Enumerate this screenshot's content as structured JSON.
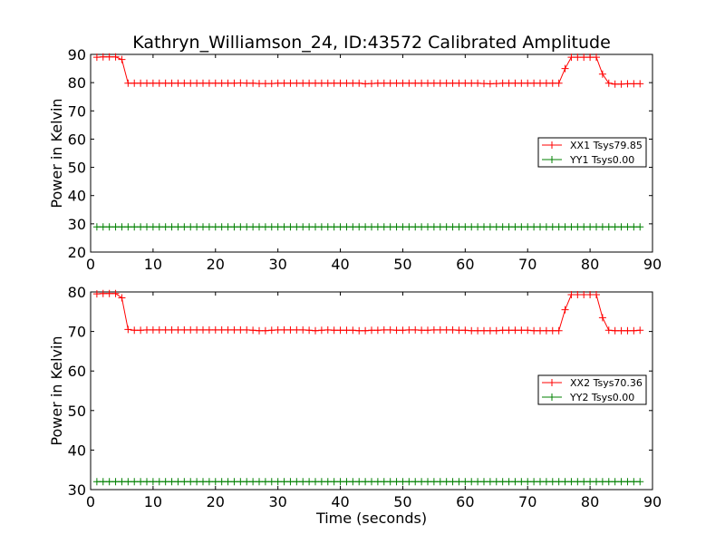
{
  "chart_data": [
    {
      "type": "line",
      "title": "Kathryn_Williamson_24, ID:43572 Calibrated Amplitude",
      "xlabel": "",
      "ylabel": "Power in Kelvin",
      "xlim": [
        0,
        90
      ],
      "ylim": [
        20,
        90
      ],
      "xticks": [
        0,
        10,
        20,
        30,
        40,
        50,
        60,
        70,
        80,
        90
      ],
      "yticks": [
        20,
        30,
        40,
        50,
        60,
        70,
        80,
        90
      ],
      "grid": false,
      "legend_position": "right",
      "x": [
        1,
        2,
        3,
        4,
        5,
        6,
        7,
        8,
        9,
        10,
        11,
        12,
        13,
        14,
        15,
        16,
        17,
        18,
        19,
        20,
        21,
        22,
        23,
        24,
        25,
        26,
        27,
        28,
        29,
        30,
        31,
        32,
        33,
        34,
        35,
        36,
        37,
        38,
        39,
        40,
        41,
        42,
        43,
        44,
        45,
        46,
        47,
        48,
        49,
        50,
        51,
        52,
        53,
        54,
        55,
        56,
        57,
        58,
        59,
        60,
        61,
        62,
        63,
        64,
        65,
        66,
        67,
        68,
        69,
        70,
        71,
        72,
        73,
        74,
        75,
        76,
        77,
        78,
        79,
        80,
        81,
        82,
        83,
        84,
        85,
        86,
        87,
        88
      ],
      "series": [
        {
          "name": "XX1 Tsys79.85",
          "color": "#ff0000",
          "values": [
            89.0,
            89.1,
            89.1,
            89.1,
            88.2,
            79.8,
            79.8,
            79.8,
            79.8,
            79.8,
            79.8,
            79.8,
            79.8,
            79.8,
            79.8,
            79.8,
            79.8,
            79.8,
            79.8,
            79.8,
            79.8,
            79.8,
            79.8,
            79.9,
            79.8,
            79.8,
            79.7,
            79.7,
            79.7,
            79.8,
            79.8,
            79.8,
            79.8,
            79.8,
            79.8,
            79.8,
            79.8,
            79.8,
            79.8,
            79.8,
            79.8,
            79.8,
            79.8,
            79.6,
            79.7,
            79.8,
            79.8,
            79.8,
            79.8,
            79.8,
            79.8,
            79.8,
            79.8,
            79.8,
            79.8,
            79.8,
            79.8,
            79.8,
            79.8,
            79.8,
            79.8,
            79.8,
            79.7,
            79.6,
            79.7,
            79.8,
            79.8,
            79.8,
            79.8,
            79.8,
            79.8,
            79.8,
            79.8,
            79.8,
            79.8,
            85.0,
            89.0,
            89.0,
            89.0,
            89.0,
            89.0,
            83.0,
            79.8,
            79.5,
            79.5,
            79.6,
            79.6,
            79.6
          ]
        },
        {
          "name": "YY1 Tsys0.00",
          "color": "#008000",
          "values": [
            28.9,
            28.9,
            28.9,
            28.9,
            28.9,
            28.9,
            28.9,
            28.9,
            28.9,
            28.9,
            28.9,
            28.9,
            28.9,
            28.9,
            28.9,
            28.9,
            28.9,
            28.9,
            28.9,
            28.9,
            28.9,
            28.9,
            28.9,
            28.9,
            28.9,
            28.9,
            28.9,
            28.9,
            28.9,
            28.9,
            28.9,
            28.9,
            28.9,
            28.9,
            28.9,
            28.9,
            28.9,
            28.9,
            28.9,
            28.9,
            28.9,
            28.9,
            28.9,
            28.9,
            28.9,
            28.9,
            28.9,
            28.9,
            28.9,
            28.9,
            28.9,
            28.9,
            28.9,
            28.9,
            28.9,
            28.9,
            28.9,
            28.9,
            28.9,
            28.9,
            28.9,
            28.9,
            28.9,
            28.9,
            28.9,
            28.9,
            28.9,
            28.9,
            28.9,
            28.9,
            28.9,
            28.9,
            28.9,
            28.9,
            28.9,
            28.9,
            28.9,
            28.9,
            28.9,
            28.9,
            28.9,
            28.9,
            28.9,
            28.9,
            28.9,
            28.9,
            28.9,
            28.9
          ]
        }
      ]
    },
    {
      "type": "line",
      "title": "",
      "xlabel": "Time (seconds)",
      "ylabel": "Power in Kelvin",
      "xlim": [
        0,
        90
      ],
      "ylim": [
        30,
        80
      ],
      "xticks": [
        0,
        10,
        20,
        30,
        40,
        50,
        60,
        70,
        80,
        90
      ],
      "yticks": [
        30,
        40,
        50,
        60,
        70,
        80
      ],
      "grid": false,
      "legend_position": "right",
      "x": [
        1,
        2,
        3,
        4,
        5,
        6,
        7,
        8,
        9,
        10,
        11,
        12,
        13,
        14,
        15,
        16,
        17,
        18,
        19,
        20,
        21,
        22,
        23,
        24,
        25,
        26,
        27,
        28,
        29,
        30,
        31,
        32,
        33,
        34,
        35,
        36,
        37,
        38,
        39,
        40,
        41,
        42,
        43,
        44,
        45,
        46,
        47,
        48,
        49,
        50,
        51,
        52,
        53,
        54,
        55,
        56,
        57,
        58,
        59,
        60,
        61,
        62,
        63,
        64,
        65,
        66,
        67,
        68,
        69,
        70,
        71,
        72,
        73,
        74,
        75,
        76,
        77,
        78,
        79,
        80,
        81,
        82,
        83,
        84,
        85,
        86,
        87,
        88
      ],
      "series": [
        {
          "name": "XX2 Tsys70.36",
          "color": "#ff0000",
          "values": [
            79.5,
            79.6,
            79.6,
            79.6,
            78.5,
            70.5,
            70.3,
            70.3,
            70.4,
            70.4,
            70.4,
            70.4,
            70.4,
            70.4,
            70.4,
            70.4,
            70.4,
            70.4,
            70.4,
            70.4,
            70.4,
            70.4,
            70.4,
            70.4,
            70.4,
            70.3,
            70.2,
            70.2,
            70.3,
            70.4,
            70.4,
            70.4,
            70.4,
            70.4,
            70.3,
            70.2,
            70.3,
            70.4,
            70.3,
            70.3,
            70.3,
            70.3,
            70.2,
            70.2,
            70.3,
            70.3,
            70.4,
            70.4,
            70.3,
            70.3,
            70.4,
            70.4,
            70.3,
            70.3,
            70.4,
            70.4,
            70.4,
            70.4,
            70.3,
            70.3,
            70.2,
            70.2,
            70.2,
            70.2,
            70.2,
            70.3,
            70.3,
            70.3,
            70.3,
            70.3,
            70.2,
            70.2,
            70.2,
            70.2,
            70.2,
            75.5,
            79.3,
            79.3,
            79.3,
            79.3,
            79.3,
            73.5,
            70.3,
            70.2,
            70.2,
            70.2,
            70.2,
            70.3
          ]
        },
        {
          "name": "YY2 Tsys0.00",
          "color": "#008000",
          "values": [
            32.0,
            32.0,
            32.0,
            32.0,
            32.0,
            32.0,
            32.0,
            32.0,
            32.0,
            32.0,
            32.0,
            32.0,
            32.0,
            32.0,
            32.0,
            32.0,
            32.0,
            32.0,
            32.0,
            32.0,
            32.0,
            32.0,
            32.0,
            32.0,
            32.0,
            32.0,
            32.0,
            32.0,
            32.0,
            32.0,
            32.0,
            32.0,
            32.0,
            32.0,
            32.0,
            32.0,
            32.0,
            32.0,
            32.0,
            32.0,
            32.0,
            32.0,
            32.0,
            32.0,
            32.0,
            32.0,
            32.0,
            32.0,
            32.0,
            32.0,
            32.0,
            32.0,
            32.0,
            32.0,
            32.0,
            32.0,
            32.0,
            32.0,
            32.0,
            32.0,
            32.0,
            32.0,
            32.0,
            32.0,
            32.0,
            32.0,
            32.0,
            32.0,
            32.0,
            32.0,
            32.0,
            32.0,
            32.0,
            32.0,
            32.0,
            32.0,
            32.0,
            32.0,
            32.0,
            32.0,
            32.0,
            32.0,
            32.0,
            32.0,
            32.0,
            32.0,
            32.0,
            32.0
          ]
        }
      ]
    }
  ]
}
